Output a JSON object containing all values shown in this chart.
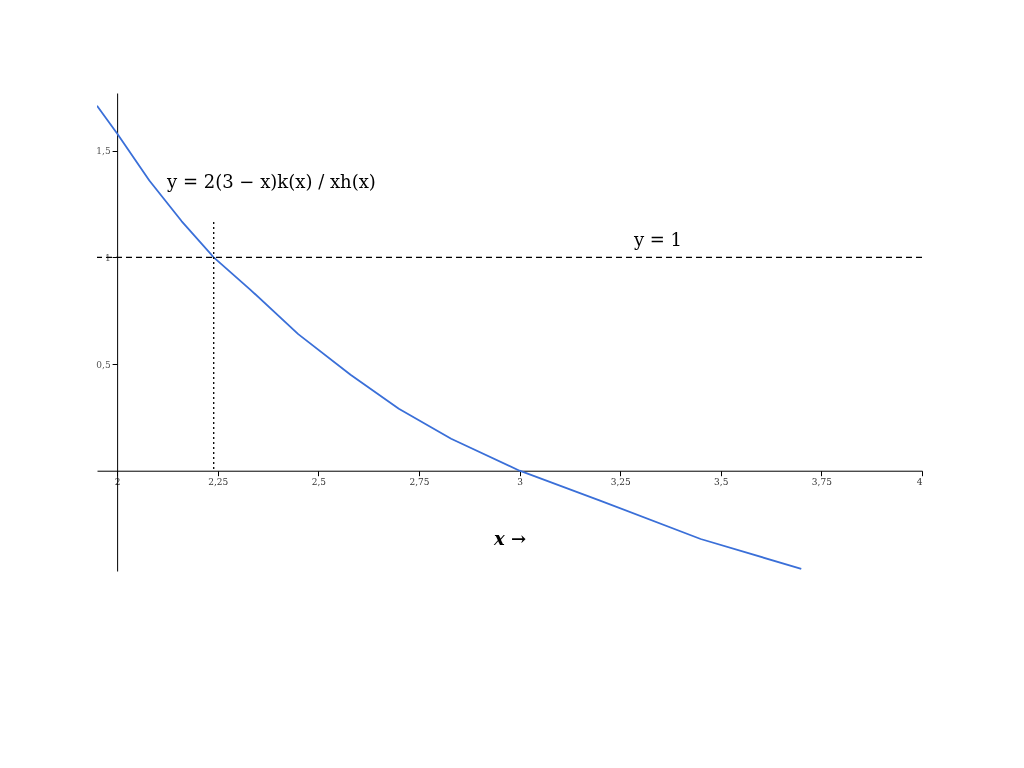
{
  "chart_data": {
    "type": "line",
    "xlabel": "x →",
    "x": [
      1.95,
      2.0,
      2.08,
      2.16,
      2.24,
      2.33,
      2.45,
      2.58,
      2.7,
      2.83,
      3.0,
      3.2,
      3.45,
      3.7
    ],
    "series": [
      {
        "color": "#3a6fd8",
        "values": [
          1.71,
          1.58,
          1.36,
          1.17,
          1.0,
          0.85,
          0.64,
          0.45,
          0.29,
          0.15,
          0.0,
          -0.14,
          -0.32,
          -0.46
        ]
      }
    ],
    "xlim": [
      1.95,
      4.0
    ],
    "ylim": [
      -0.47,
      1.77
    ],
    "xticks": [
      2,
      {
        "value": 2.25,
        "label": "2,25"
      },
      {
        "value": 2.5,
        "label": "2,5"
      },
      {
        "value": 2.75,
        "label": "2,75"
      },
      3,
      {
        "value": 3.25,
        "label": "3,25"
      },
      {
        "value": 3.5,
        "label": "3,5"
      },
      {
        "value": 3.75,
        "label": "3,75"
      },
      4
    ],
    "yticks": [
      {
        "value": 0.5,
        "label": "0,5"
      },
      1,
      {
        "value": 1.5,
        "label": "1,5"
      }
    ],
    "ref_lines": [
      {
        "axis": "y",
        "value": 1,
        "label": "y = 1",
        "line_style": "dashed",
        "color": "#000000"
      },
      {
        "axis": "x",
        "value": 2.24,
        "line_style": "dotted",
        "color": "#000000"
      }
    ],
    "annotations": [
      "y = 2(3 − x)k(x) / xh(x)"
    ],
    "grid": false,
    "marker": "none",
    "line_style": "solid"
  }
}
